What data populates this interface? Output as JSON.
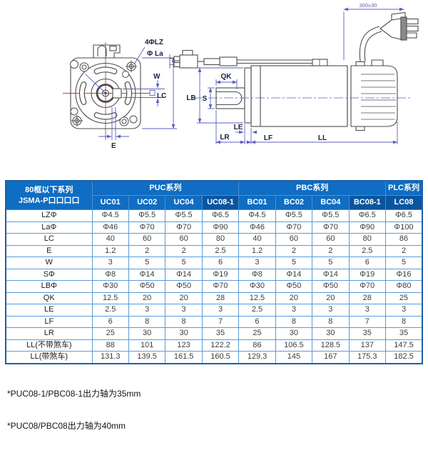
{
  "drawing": {
    "front": {
      "bolt_label": "4ΦLZ",
      "pilot_label": "Φ La",
      "w": "W",
      "lc": "LC",
      "e": "E"
    },
    "side": {
      "qk": "QK",
      "s": "S",
      "lb": "LB",
      "le": "LE",
      "lr": "LR",
      "lf": "LF",
      "ll": "LL",
      "cable_length": "300±30"
    }
  },
  "table": {
    "corner_header_line1": "80框以下系列",
    "corner_header_line2": "JSMA-P口口口口",
    "groups": [
      {
        "label": "PUC系列",
        "span": 4
      },
      {
        "label": "PBC系列",
        "span": 4
      },
      {
        "label": "PLC系列",
        "span": 1
      }
    ],
    "columns": [
      "UC01",
      "UC02",
      "UC04",
      "UC08-1",
      "BC01",
      "BC02",
      "BC04",
      "BC08-1",
      "LC08"
    ],
    "dark_column_indexes": [
      3,
      7,
      8
    ],
    "rows": [
      {
        "label": "LZΦ",
        "values": [
          "Φ4.5",
          "Φ5.5",
          "Φ5.5",
          "Φ6.5",
          "Φ4.5",
          "Φ5.5",
          "Φ5.5",
          "Φ6.5",
          "Φ6.5"
        ]
      },
      {
        "label": "LaΦ",
        "values": [
          "Φ46",
          "Φ70",
          "Φ70",
          "Φ90",
          "Φ46",
          "Φ70",
          "Φ70",
          "Φ90",
          "Φ100"
        ]
      },
      {
        "label": "LC",
        "values": [
          "40",
          "60",
          "60",
          "80",
          "40",
          "60",
          "60",
          "80",
          "86"
        ]
      },
      {
        "label": "E",
        "values": [
          "1.2",
          "2",
          "2",
          "2.5",
          "1.2",
          "2",
          "2",
          "2.5",
          "2"
        ]
      },
      {
        "label": "W",
        "values": [
          "3",
          "5",
          "5",
          "6",
          "3",
          "5",
          "5",
          "6",
          "5"
        ]
      },
      {
        "label": "SΦ",
        "values": [
          "Φ8",
          "Φ14",
          "Φ14",
          "Φ19",
          "Φ8",
          "Φ14",
          "Φ14",
          "Φ19",
          "Φ16"
        ]
      },
      {
        "label": "LBΦ",
        "values": [
          "Φ30",
          "Φ50",
          "Φ50",
          "Φ70",
          "Φ30",
          "Φ50",
          "Φ50",
          "Φ70",
          "Φ80"
        ]
      },
      {
        "label": "QK",
        "values": [
          "12.5",
          "20",
          "20",
          "28",
          "12.5",
          "20",
          "20",
          "28",
          "25"
        ]
      },
      {
        "label": "LE",
        "values": [
          "2.5",
          "3",
          "3",
          "3",
          "2.5",
          "3",
          "3",
          "3",
          "3"
        ]
      },
      {
        "label": "LF",
        "values": [
          "6",
          "8",
          "8",
          "7",
          "6",
          "8",
          "8",
          "7",
          "8"
        ]
      },
      {
        "label": "LR",
        "values": [
          "25",
          "30",
          "30",
          "35",
          "25",
          "30",
          "30",
          "35",
          "35"
        ]
      },
      {
        "label": "LL(不带煞车)",
        "values": [
          "88",
          "101",
          "123",
          "122.2",
          "86",
          "106.5",
          "128.5",
          "137",
          "147.5"
        ]
      },
      {
        "label": "LL(带煞车)",
        "values": [
          "131.3",
          "139.5",
          "161.5",
          "160.5",
          "129.3",
          "145",
          "167",
          "175.3",
          "182.5"
        ]
      }
    ]
  },
  "footnotes": [
    "*PUC08-1/PBC08-1出力轴为35mm",
    "*PUC08/PBC08出力轴为40mm"
  ],
  "colors": {
    "header_bg": "#0f6dc3",
    "header_dark_bg": "#0a55a0",
    "inner_border": "#5b9bd5",
    "outer_border": "#1e5fa8",
    "dimension": "#5b5fc0",
    "centerline_red": "#c04040",
    "centerline_blue": "#4466cc",
    "line": "#4d4d4d"
  }
}
